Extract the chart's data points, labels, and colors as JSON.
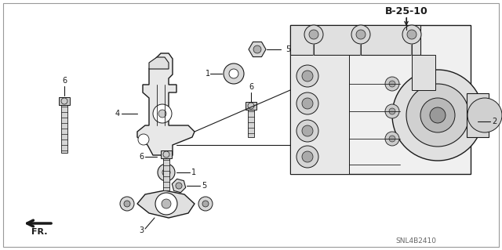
{
  "bg_color": "#ffffff",
  "line_color": "#1a1a1a",
  "text_color": "#1a1a1a",
  "label_B2510": "B-25-10",
  "label_SNL": "SNL4B2410",
  "label_FR": "FR.",
  "figsize": [
    6.4,
    3.19
  ],
  "dpi": 100
}
